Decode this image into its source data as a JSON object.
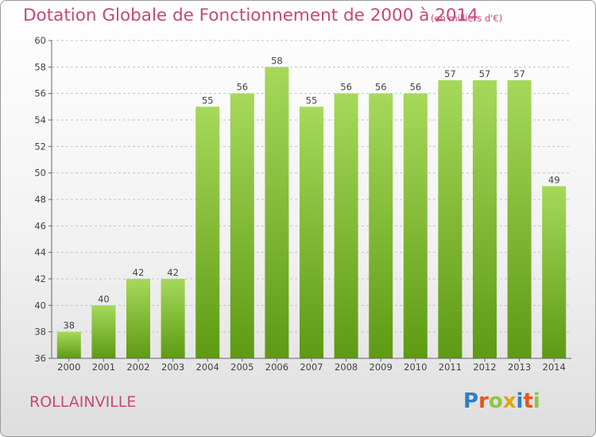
{
  "header": {
    "title": "Dotation Globale de Fonctionnement de 2000 à 2014",
    "subtitle": "(en milliers d'€)"
  },
  "footer": {
    "town": "ROLLAINVILLE",
    "logo": {
      "letters": [
        "P",
        "r",
        "o",
        "x",
        "i",
        "t",
        "i"
      ],
      "colors": [
        "#2e7fc1",
        "#e8541c",
        "#8cc63f",
        "#e2a30e",
        "#2e7fc1",
        "#e8541c",
        "#8cc63f"
      ]
    }
  },
  "colors": {
    "bar_top": "#a6d95a",
    "bar_bottom": "#5e9a14",
    "text": "#c8467a"
  },
  "chart_data": {
    "type": "bar",
    "categories": [
      "2000",
      "2001",
      "2002",
      "2003",
      "2004",
      "2005",
      "2006",
      "2007",
      "2008",
      "2009",
      "2010",
      "2011",
      "2012",
      "2013",
      "2014"
    ],
    "values": [
      38,
      40,
      42,
      42,
      55,
      56,
      58,
      55,
      56,
      56,
      56,
      57,
      57,
      57,
      49
    ],
    "ylim": [
      36,
      60
    ],
    "yticks": [
      36,
      38,
      40,
      42,
      44,
      46,
      48,
      50,
      52,
      54,
      56,
      58,
      60
    ],
    "grid": "horizontal-dashed",
    "data_labels": true
  }
}
